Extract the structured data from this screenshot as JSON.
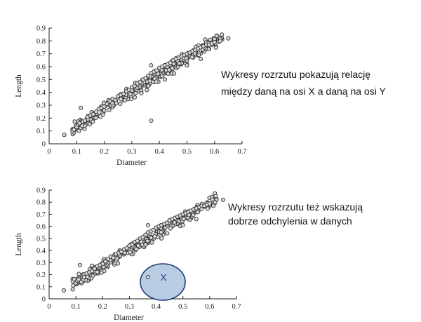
{
  "chart_data": [
    {
      "type": "scatter",
      "xlabel": "Diameter",
      "ylabel": "Length",
      "xlim": [
        0,
        0.7
      ],
      "ylim": [
        0,
        0.9
      ],
      "xticks": [
        "0",
        "0.1",
        "0.2",
        "0.3",
        "0.4",
        "0.5",
        "0.6",
        "0.7"
      ],
      "yticks": [
        "0",
        "0.1",
        "0.2",
        "0.3",
        "0.4",
        "0.5",
        "0.6",
        "0.7",
        "0.8",
        "0.9"
      ],
      "grid": false,
      "annotation": [
        "Wykresy rozrzutu pokazują relację",
        "między daną na osi X a daną na osi Y"
      ],
      "points": [
        [
          0.055,
          0.07
        ],
        [
          0.09,
          0.11
        ],
        [
          0.1,
          0.13
        ],
        [
          0.105,
          0.15
        ],
        [
          0.11,
          0.16
        ],
        [
          0.12,
          0.14
        ],
        [
          0.13,
          0.18
        ],
        [
          0.14,
          0.21
        ],
        [
          0.15,
          0.22
        ],
        [
          0.16,
          0.23
        ],
        [
          0.17,
          0.25
        ],
        [
          0.18,
          0.27
        ],
        [
          0.19,
          0.28
        ],
        [
          0.2,
          0.29
        ],
        [
          0.21,
          0.31
        ],
        [
          0.22,
          0.33
        ],
        [
          0.23,
          0.35
        ],
        [
          0.24,
          0.34
        ],
        [
          0.25,
          0.37
        ],
        [
          0.26,
          0.38
        ],
        [
          0.27,
          0.39
        ],
        [
          0.28,
          0.41
        ],
        [
          0.29,
          0.42
        ],
        [
          0.3,
          0.44
        ],
        [
          0.31,
          0.45
        ],
        [
          0.32,
          0.47
        ],
        [
          0.33,
          0.48
        ],
        [
          0.34,
          0.5
        ],
        [
          0.35,
          0.51
        ],
        [
          0.36,
          0.53
        ],
        [
          0.37,
          0.55
        ],
        [
          0.38,
          0.56
        ],
        [
          0.39,
          0.57
        ],
        [
          0.4,
          0.59
        ],
        [
          0.41,
          0.6
        ],
        [
          0.42,
          0.61
        ],
        [
          0.43,
          0.62
        ],
        [
          0.44,
          0.63
        ],
        [
          0.45,
          0.65
        ],
        [
          0.46,
          0.66
        ],
        [
          0.47,
          0.67
        ],
        [
          0.48,
          0.68
        ],
        [
          0.49,
          0.69
        ],
        [
          0.5,
          0.7
        ],
        [
          0.51,
          0.71
        ],
        [
          0.52,
          0.72
        ],
        [
          0.53,
          0.73
        ],
        [
          0.54,
          0.74
        ],
        [
          0.55,
          0.75
        ],
        [
          0.56,
          0.76
        ],
        [
          0.57,
          0.77
        ],
        [
          0.58,
          0.77
        ],
        [
          0.59,
          0.78
        ],
        [
          0.6,
          0.79
        ],
        [
          0.62,
          0.8
        ],
        [
          0.65,
          0.82
        ],
        [
          0.115,
          0.28
        ],
        [
          0.37,
          0.18
        ],
        [
          0.37,
          0.61
        ],
        [
          0.36,
          0.45
        ],
        [
          0.42,
          0.5
        ],
        [
          0.5,
          0.61
        ],
        [
          0.55,
          0.66
        ]
      ],
      "trend": {
        "slope": 1.32,
        "intercept": 0.005,
        "x_min": 0.085,
        "x_max": 0.63,
        "spread": 0.045
      }
    },
    {
      "type": "scatter",
      "xlabel": "Diameter",
      "ylabel": "Length",
      "xlim": [
        0,
        0.7
      ],
      "ylim": [
        0,
        0.9
      ],
      "xticks": [
        "0",
        "0.1",
        "0.2",
        "0.3",
        "0.4",
        "0.5",
        "0.6",
        "0.7"
      ],
      "yticks": [
        "0",
        "0.1",
        "0.2",
        "0.3",
        "0.4",
        "0.5",
        "0.6",
        "0.7",
        "0.8",
        "0.9"
      ],
      "grid": false,
      "annotation": [
        "Wykresy rozrzutu też wskazują",
        "dobrze odchylenia w danych"
      ],
      "outlier_label": "X",
      "outlier_ellipse_color": "#b8cce4",
      "points": [
        [
          0.055,
          0.07
        ],
        [
          0.09,
          0.11
        ],
        [
          0.1,
          0.13
        ],
        [
          0.105,
          0.15
        ],
        [
          0.11,
          0.16
        ],
        [
          0.12,
          0.14
        ],
        [
          0.13,
          0.18
        ],
        [
          0.14,
          0.21
        ],
        [
          0.15,
          0.22
        ],
        [
          0.16,
          0.23
        ],
        [
          0.17,
          0.25
        ],
        [
          0.18,
          0.27
        ],
        [
          0.19,
          0.28
        ],
        [
          0.2,
          0.29
        ],
        [
          0.21,
          0.31
        ],
        [
          0.22,
          0.33
        ],
        [
          0.23,
          0.35
        ],
        [
          0.24,
          0.34
        ],
        [
          0.25,
          0.37
        ],
        [
          0.26,
          0.38
        ],
        [
          0.27,
          0.39
        ],
        [
          0.28,
          0.41
        ],
        [
          0.29,
          0.42
        ],
        [
          0.3,
          0.44
        ],
        [
          0.31,
          0.45
        ],
        [
          0.32,
          0.47
        ],
        [
          0.33,
          0.48
        ],
        [
          0.34,
          0.5
        ],
        [
          0.35,
          0.51
        ],
        [
          0.36,
          0.53
        ],
        [
          0.37,
          0.55
        ],
        [
          0.38,
          0.56
        ],
        [
          0.39,
          0.57
        ],
        [
          0.4,
          0.59
        ],
        [
          0.41,
          0.6
        ],
        [
          0.42,
          0.61
        ],
        [
          0.43,
          0.62
        ],
        [
          0.44,
          0.63
        ],
        [
          0.45,
          0.65
        ],
        [
          0.46,
          0.66
        ],
        [
          0.47,
          0.67
        ],
        [
          0.48,
          0.68
        ],
        [
          0.49,
          0.69
        ],
        [
          0.5,
          0.7
        ],
        [
          0.51,
          0.71
        ],
        [
          0.52,
          0.72
        ],
        [
          0.53,
          0.73
        ],
        [
          0.54,
          0.74
        ],
        [
          0.55,
          0.75
        ],
        [
          0.56,
          0.76
        ],
        [
          0.57,
          0.77
        ],
        [
          0.58,
          0.77
        ],
        [
          0.59,
          0.78
        ],
        [
          0.6,
          0.79
        ],
        [
          0.62,
          0.8
        ],
        [
          0.65,
          0.82
        ],
        [
          0.115,
          0.28
        ],
        [
          0.37,
          0.18
        ],
        [
          0.37,
          0.61
        ],
        [
          0.36,
          0.45
        ],
        [
          0.42,
          0.5
        ],
        [
          0.5,
          0.61
        ],
        [
          0.55,
          0.66
        ]
      ],
      "trend": {
        "slope": 1.32,
        "intercept": 0.005,
        "x_min": 0.085,
        "x_max": 0.63,
        "spread": 0.045
      }
    }
  ]
}
